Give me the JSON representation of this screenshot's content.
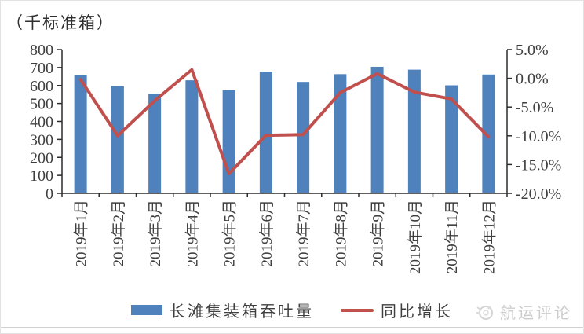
{
  "unit_label": "（千标准箱）",
  "colors": {
    "bar": "#4f81bd",
    "line": "#c0504d",
    "axis": "#2b2b2b",
    "tick_text": "#3f3f3f",
    "watermark": "#cccccc"
  },
  "chart_data": {
    "type": "bar",
    "subtype": "bar-line-combo",
    "title": "（千标准箱）",
    "categories": [
      "2019年1月",
      "2019年2月",
      "2019年3月",
      "2019年4月",
      "2019年5月",
      "2019年6月",
      "2019年7月",
      "2019年8月",
      "2019年9月",
      "2019年10月",
      "2019年11月",
      "2019年12月"
    ],
    "series": [
      {
        "name": "长滩集装箱吞吐量",
        "type": "bar",
        "axis": "left",
        "unit": "千标准箱",
        "values": [
          658,
          597,
          553,
          629,
          574,
          677,
          620,
          663,
          704,
          688,
          601,
          661
        ]
      },
      {
        "name": "同比增长",
        "type": "line",
        "axis": "right",
        "unit": "%",
        "values": [
          -0.2,
          -10.0,
          -3.9,
          1.5,
          -16.6,
          -9.9,
          -9.8,
          -2.5,
          0.8,
          -2.4,
          -3.6,
          -10.2
        ]
      }
    ],
    "left_axis": {
      "min": 0,
      "max": 800,
      "step": 100,
      "tick_labels": [
        "800",
        "700",
        "600",
        "500",
        "400",
        "300",
        "200",
        "100",
        "0"
      ]
    },
    "right_axis": {
      "min": -20,
      "max": 5,
      "step": 5,
      "tick_labels": [
        "5.0%",
        "0.0%",
        "-5.0%",
        "-10.0%",
        "-15.0%",
        "-20.0%"
      ]
    },
    "grid": false,
    "legend_position": "bottom"
  },
  "legend": {
    "items": [
      {
        "label": "长滩集装箱吞吐量",
        "swatch": "bar"
      },
      {
        "label": "同比增长",
        "swatch": "line"
      }
    ]
  },
  "watermark": {
    "label": "航运评论",
    "icon": "shipping-review-logo-icon"
  }
}
